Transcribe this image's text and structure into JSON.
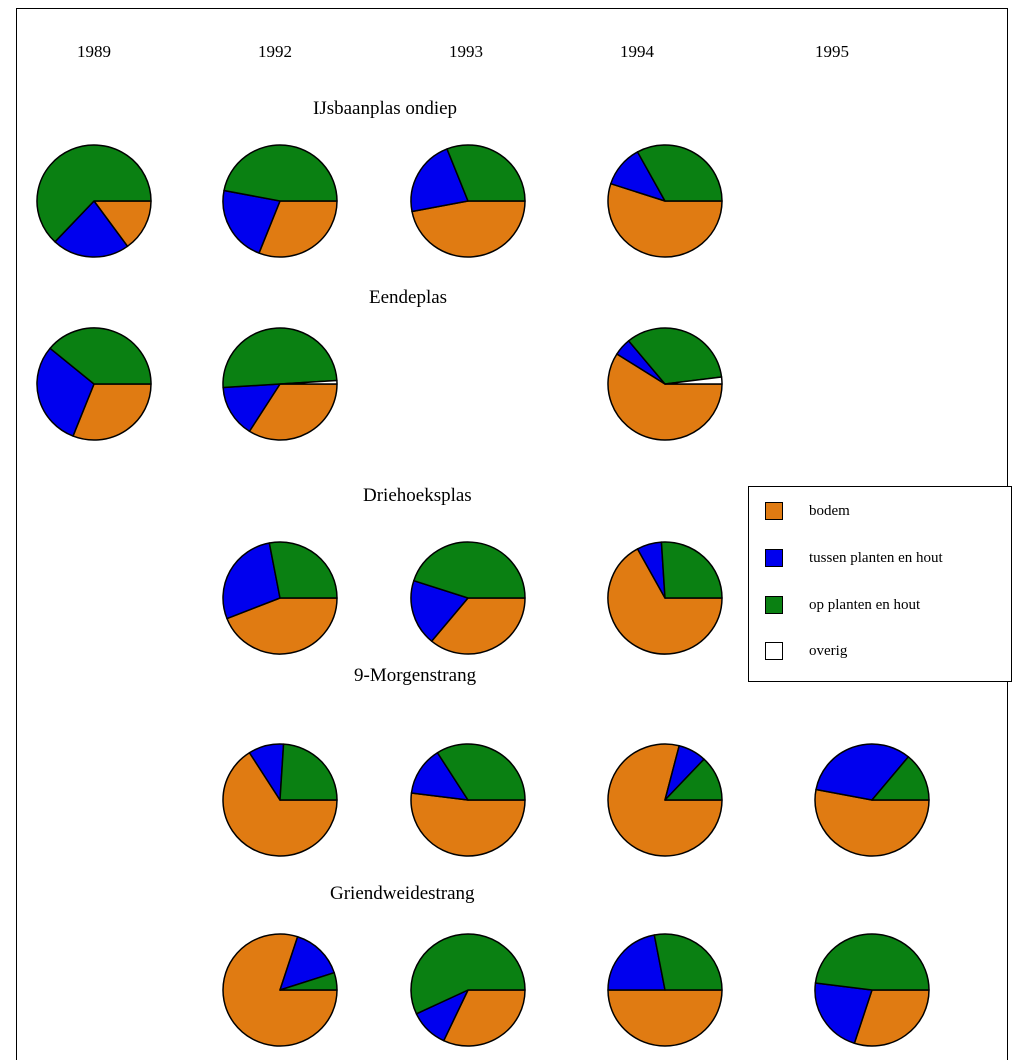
{
  "colors": {
    "bodem": "#E07B12",
    "tussen planten en hout": "#0000EE",
    "op planten en hout": "#0A8012",
    "overig": "#FFFFFF"
  },
  "legend": [
    {
      "label": "bodem",
      "color": "#E07B12"
    },
    {
      "label": "tussen planten en hout",
      "color": "#0000EE"
    },
    {
      "label": "op planten en hout",
      "color": "#0A8012"
    },
    {
      "label": "overig",
      "color": "#FFFFFF"
    }
  ],
  "chart_data": {
    "type": "pie",
    "years": [
      "1989",
      "1992",
      "1993",
      "1994",
      "1995"
    ],
    "categories": [
      "bodem",
      "tussen planten en hout",
      "op planten en hout",
      "overig"
    ],
    "groups": [
      {
        "title": "IJsbaanplas ondiep",
        "pies": [
          {
            "year": "1989",
            "values": [
              15,
              22,
              63,
              0
            ]
          },
          {
            "year": "1992",
            "values": [
              31,
              22,
              47,
              0
            ]
          },
          {
            "year": "1993",
            "values": [
              47,
              22,
              31,
              0
            ]
          },
          {
            "year": "1994",
            "values": [
              55,
              12,
              33,
              0
            ]
          }
        ]
      },
      {
        "title": "Eendeplas",
        "pies": [
          {
            "year": "1989",
            "values": [
              31,
              30,
              39,
              0
            ]
          },
          {
            "year": "1992",
            "values": [
              34,
              15,
              50,
              1
            ]
          },
          {
            "year": "1994",
            "values": [
              59,
              5,
              34,
              2
            ]
          }
        ]
      },
      {
        "title": "Driehoeksplas",
        "pies": [
          {
            "year": "1992",
            "values": [
              44,
              28,
              28,
              0
            ]
          },
          {
            "year": "1993",
            "values": [
              36,
              19,
              45,
              0
            ]
          },
          {
            "year": "1994",
            "values": [
              67,
              7,
              26,
              0
            ]
          }
        ]
      },
      {
        "title": "9-Morgenstrang",
        "pies": [
          {
            "year": "1992",
            "values": [
              66,
              10,
              24,
              0
            ]
          },
          {
            "year": "1993",
            "values": [
              52,
              14,
              34,
              0
            ]
          },
          {
            "year": "1994",
            "values": [
              79,
              8,
              13,
              0
            ]
          },
          {
            "year": "1995",
            "values": [
              53,
              33,
              14,
              0
            ]
          }
        ]
      },
      {
        "title": "Griendweidestrang",
        "pies": [
          {
            "year": "1992",
            "values": [
              80,
              15,
              5,
              0
            ]
          },
          {
            "year": "1993",
            "values": [
              32,
              11,
              57,
              0
            ]
          },
          {
            "year": "1994",
            "values": [
              50,
              22,
              28,
              0
            ]
          },
          {
            "year": "1995",
            "values": [
              30,
              22,
              48,
              0
            ]
          }
        ]
      }
    ]
  }
}
